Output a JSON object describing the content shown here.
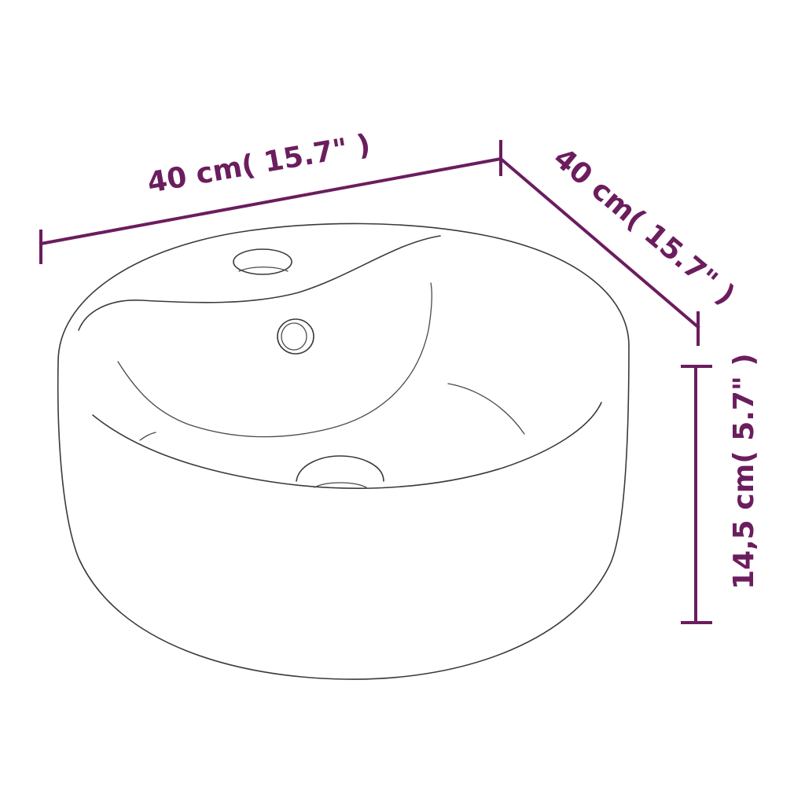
{
  "dimensions": {
    "width_label": "40 cm( 15.7\" )",
    "depth_label": "40 cm( 15.7\" )",
    "height_label": "14,5 cm( 5.7\" )"
  },
  "colors": {
    "dimension": "#6b1d5e",
    "outline": "#3a3a3a",
    "background": "#ffffff"
  }
}
